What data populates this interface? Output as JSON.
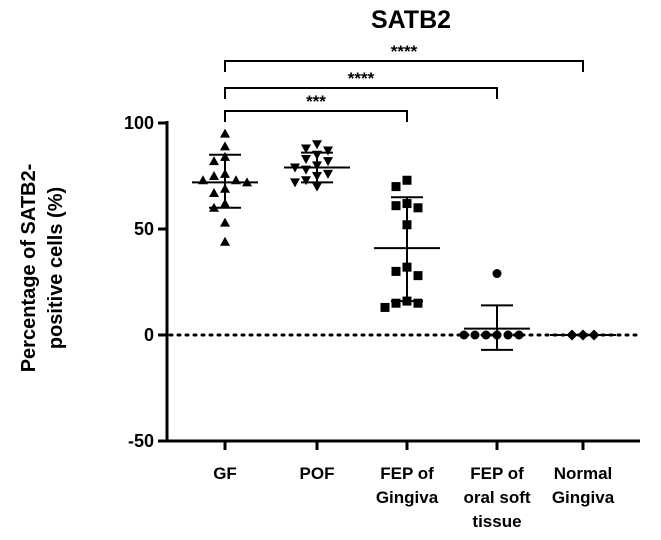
{
  "chart_data": {
    "type": "scatter",
    "title": "SATB2",
    "ylabel_lines": [
      "Percentage of SATB2-",
      "positive cells (%)"
    ],
    "xlabel": "",
    "ylim": [
      -50,
      100
    ],
    "yticks": [
      100,
      50,
      0,
      -50
    ],
    "tick_labels": [
      "100",
      "50",
      "0",
      "-50"
    ],
    "reference_line": {
      "y": 0,
      "style": "dotted"
    },
    "categories": [
      {
        "label_lines": [
          "GF"
        ],
        "marker": "triangle-up",
        "mean": 72,
        "sd_upper": 85,
        "sd_lower": 60,
        "values": [
          95,
          89,
          84,
          82,
          76,
          75,
          73,
          73,
          72,
          69,
          67,
          62,
          60,
          53,
          44
        ]
      },
      {
        "label_lines": [
          "POF"
        ],
        "marker": "triangle-down",
        "mean": 79,
        "sd_upper": 86,
        "sd_lower": 72,
        "values": [
          90,
          88,
          87,
          85,
          83,
          82,
          80,
          79,
          78,
          76,
          75,
          73,
          72,
          70
        ]
      },
      {
        "label_lines": [
          "FEP of",
          "Gingiva"
        ],
        "marker": "square",
        "mean": 41,
        "sd_upper": 65,
        "sd_lower": 16,
        "values": [
          73,
          70,
          62,
          61,
          60,
          52,
          32,
          30,
          28,
          16,
          15,
          15,
          13
        ]
      },
      {
        "label_lines": [
          "FEP of",
          "oral soft",
          "tissue"
        ],
        "marker": "circle",
        "mean": 3,
        "sd_upper": 14,
        "sd_lower": -7,
        "values": [
          29,
          0,
          0,
          0,
          0,
          0,
          0
        ]
      },
      {
        "label_lines": [
          "Normal",
          "Gingiva"
        ],
        "marker": "diamond",
        "mean": 0,
        "sd_upper": 0,
        "sd_lower": 0,
        "values": [
          0,
          0,
          0
        ]
      }
    ],
    "significance": [
      {
        "from": 0,
        "to": 2,
        "label": "***"
      },
      {
        "from": 0,
        "to": 3,
        "label": "****"
      },
      {
        "from": 0,
        "to": 4,
        "label": "****"
      }
    ]
  }
}
